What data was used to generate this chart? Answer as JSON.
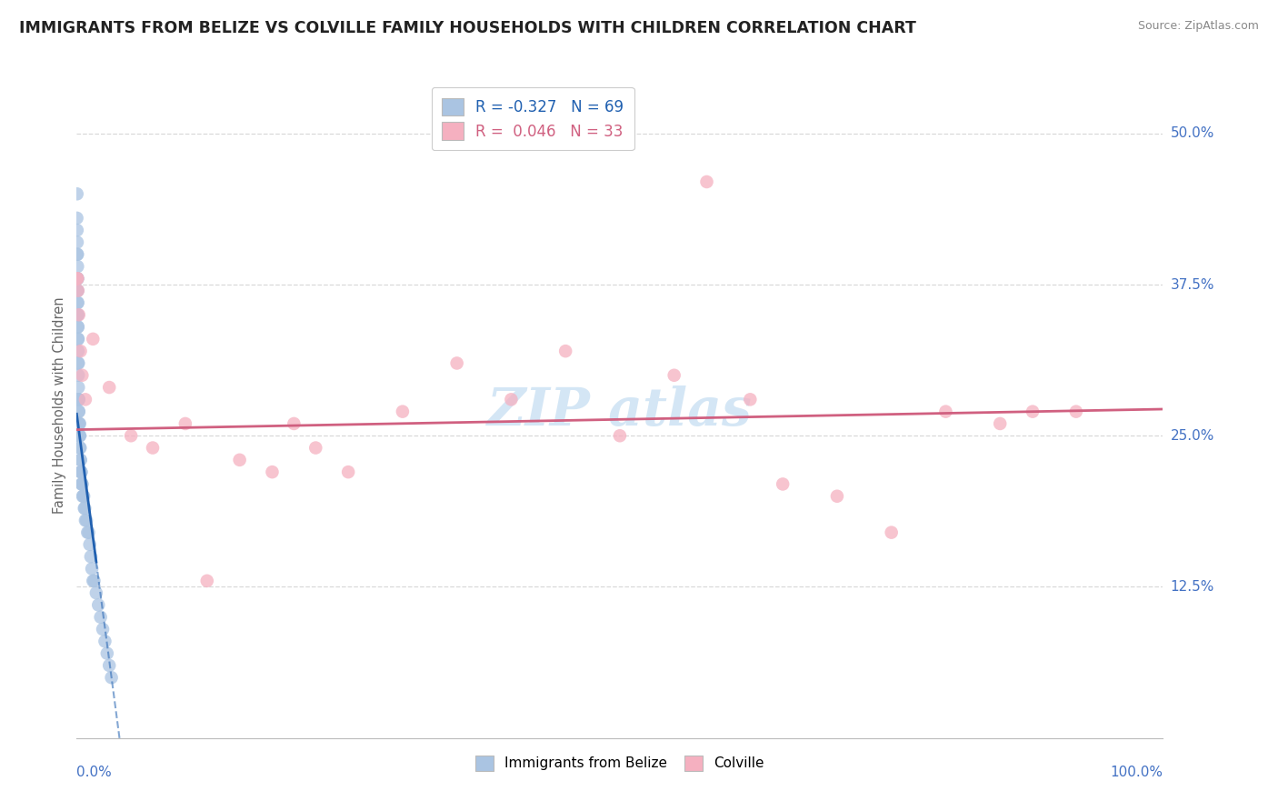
{
  "title": "IMMIGRANTS FROM BELIZE VS COLVILLE FAMILY HOUSEHOLDS WITH CHILDREN CORRELATION CHART",
  "source": "Source: ZipAtlas.com",
  "ylabel": "Family Households with Children",
  "legend_blue_label": "Immigrants from Belize",
  "legend_pink_label": "Colville",
  "r_blue": -0.327,
  "n_blue": 69,
  "r_pink": 0.046,
  "n_pink": 33,
  "blue_color": "#aac4e2",
  "blue_line_color": "#2060b0",
  "pink_color": "#f5b0c0",
  "pink_line_color": "#d06080",
  "background_color": "#ffffff",
  "grid_color": "#d0d0d0",
  "title_color": "#222222",
  "source_color": "#888888",
  "axis_label_color": "#4472c4",
  "ylabel_color": "#666666",
  "watermark_color": "#d0e4f4",
  "xlim": [
    0,
    100
  ],
  "ylim": [
    0.0,
    0.55
  ],
  "ytick_vals": [
    0.125,
    0.25,
    0.375,
    0.5
  ],
  "ytick_labels": [
    "12.5%",
    "25.0%",
    "37.5%",
    "50.0%"
  ],
  "blue_x": [
    0.02,
    0.03,
    0.04,
    0.05,
    0.05,
    0.06,
    0.07,
    0.07,
    0.08,
    0.08,
    0.08,
    0.09,
    0.09,
    0.1,
    0.1,
    0.11,
    0.11,
    0.12,
    0.12,
    0.13,
    0.13,
    0.14,
    0.15,
    0.15,
    0.16,
    0.17,
    0.18,
    0.19,
    0.2,
    0.2,
    0.21,
    0.22,
    0.23,
    0.25,
    0.26,
    0.28,
    0.3,
    0.3,
    0.32,
    0.34,
    0.36,
    0.38,
    0.4,
    0.42,
    0.45,
    0.48,
    0.5,
    0.55,
    0.6,
    0.65,
    0.7,
    0.75,
    0.8,
    0.9,
    1.0,
    1.1,
    1.2,
    1.3,
    1.4,
    1.5,
    1.6,
    1.8,
    2.0,
    2.2,
    2.4,
    2.6,
    2.8,
    3.0,
    3.2
  ],
  "blue_y": [
    0.43,
    0.45,
    0.42,
    0.41,
    0.4,
    0.38,
    0.38,
    0.4,
    0.37,
    0.38,
    0.39,
    0.36,
    0.37,
    0.35,
    0.36,
    0.35,
    0.34,
    0.33,
    0.34,
    0.32,
    0.33,
    0.31,
    0.3,
    0.31,
    0.29,
    0.28,
    0.28,
    0.27,
    0.27,
    0.28,
    0.26,
    0.26,
    0.25,
    0.25,
    0.25,
    0.26,
    0.25,
    0.24,
    0.24,
    0.23,
    0.23,
    0.22,
    0.22,
    0.22,
    0.21,
    0.21,
    0.21,
    0.2,
    0.2,
    0.2,
    0.19,
    0.19,
    0.18,
    0.18,
    0.17,
    0.17,
    0.16,
    0.15,
    0.14,
    0.13,
    0.13,
    0.12,
    0.11,
    0.1,
    0.09,
    0.08,
    0.07,
    0.06,
    0.05
  ],
  "pink_x": [
    0.05,
    0.08,
    0.12,
    0.2,
    0.35,
    0.5,
    0.8,
    1.5,
    3.0,
    5.0,
    7.0,
    10.0,
    12.0,
    15.0,
    18.0,
    20.0,
    22.0,
    25.0,
    30.0,
    35.0,
    40.0,
    45.0,
    50.0,
    55.0,
    58.0,
    62.0,
    65.0,
    70.0,
    75.0,
    80.0,
    85.0,
    88.0,
    92.0
  ],
  "pink_y": [
    0.38,
    0.38,
    0.37,
    0.35,
    0.32,
    0.3,
    0.28,
    0.33,
    0.29,
    0.25,
    0.24,
    0.26,
    0.13,
    0.23,
    0.22,
    0.26,
    0.24,
    0.22,
    0.27,
    0.31,
    0.28,
    0.32,
    0.25,
    0.3,
    0.46,
    0.28,
    0.21,
    0.2,
    0.17,
    0.27,
    0.26,
    0.27,
    0.27
  ],
  "blue_line_x0": 0.0,
  "blue_line_y0": 0.268,
  "blue_line_slope": -0.068,
  "blue_line_solid_end": 1.8,
  "blue_line_dashed_end": 12.0,
  "pink_line_x0": 0.0,
  "pink_line_y0": 0.255,
  "pink_line_x1": 100.0,
  "pink_line_y1": 0.272
}
